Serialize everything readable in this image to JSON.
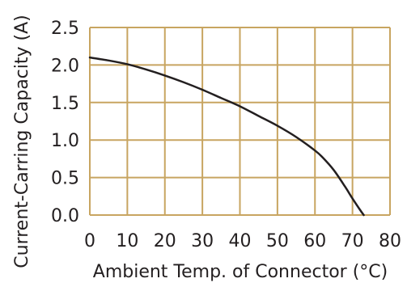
{
  "chart_data": {
    "type": "line",
    "title": "",
    "xlabel": "Ambient Temp. of Connector (°C)",
    "ylabel": "Current-Carring Capacity (A)",
    "xlim": [
      0,
      80
    ],
    "ylim": [
      0,
      2.5
    ],
    "x_ticks": [
      "0",
      "10",
      "20",
      "30",
      "40",
      "50",
      "60",
      "70",
      "80"
    ],
    "y_ticks": [
      "0.0",
      "0.5",
      "1.0",
      "1.5",
      "2.0",
      "2.5"
    ],
    "grid": true,
    "legend": "none",
    "colors": {
      "grid": "#c8a561",
      "line": "#231f20",
      "text": "#231f20"
    },
    "series": [
      {
        "x": [
          0,
          5,
          10,
          15,
          20,
          25,
          30,
          35,
          40,
          45,
          50,
          55,
          60,
          62,
          65,
          68,
          70,
          72,
          73
        ],
        "y": [
          2.1,
          2.06,
          2.01,
          1.94,
          1.86,
          1.77,
          1.67,
          1.56,
          1.45,
          1.32,
          1.19,
          1.04,
          0.86,
          0.77,
          0.6,
          0.38,
          0.22,
          0.07,
          0.0
        ]
      }
    ]
  }
}
